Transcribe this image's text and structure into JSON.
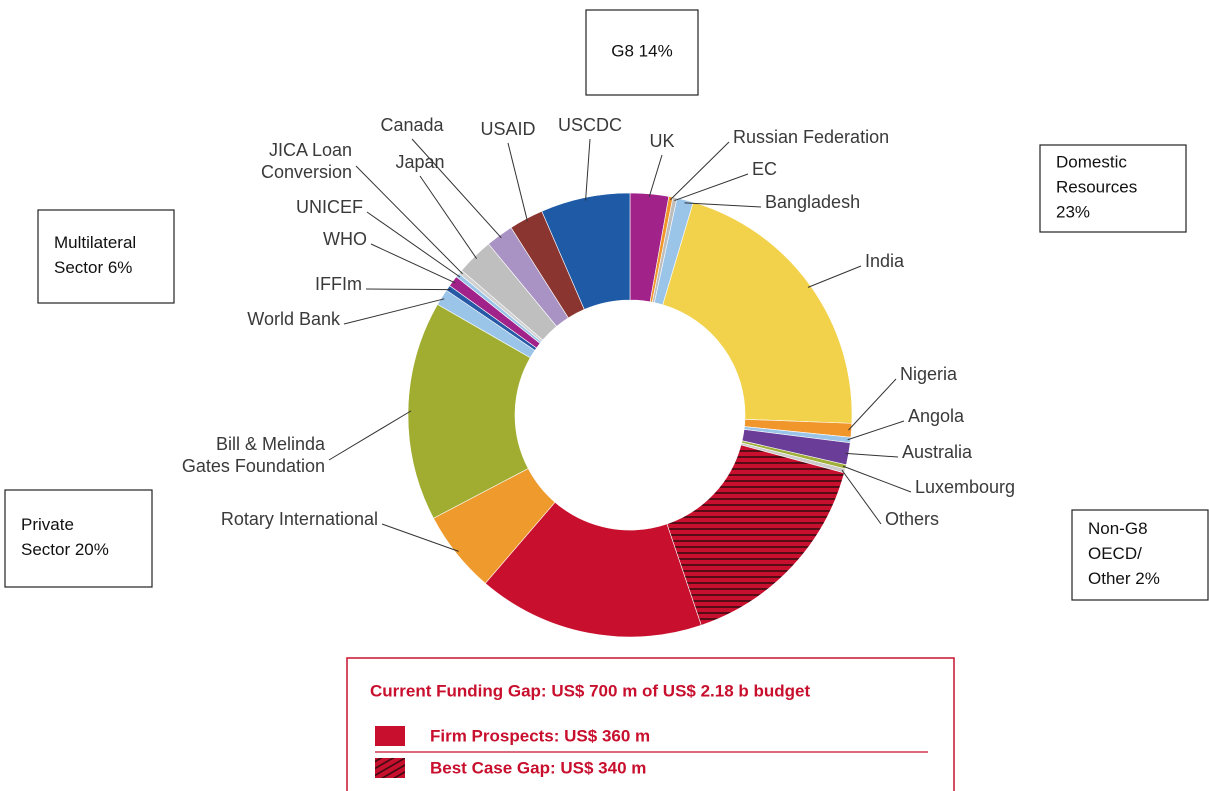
{
  "chart_data": {
    "type": "pie",
    "donut": true,
    "labels": [
      "UK",
      "Russian Federation",
      "EC",
      "Bangladesh",
      "India",
      "Nigeria",
      "Angola",
      "Australia",
      "Luxembourg",
      "Others",
      null,
      null,
      "Rotary International",
      "Bill & Melinda\nGates Foundation",
      "World Bank",
      "IFFIm",
      "WHO",
      "UNICEF",
      "JICA Loan\nConversion",
      "Japan",
      "Canada",
      "USAID",
      "USCDC"
    ],
    "values": [
      2.8,
      0.3,
      0.3,
      1.2,
      21,
      1,
      0.4,
      1.6,
      0.3,
      0.3,
      15.6,
      16.5,
      6,
      16,
      1.2,
      0.4,
      0.8,
      0.3,
      0.3,
      2.7,
      2,
      2.5,
      6.5
    ],
    "colors": [
      "#a1238a",
      "#f0962a",
      "#bdbdbd",
      "#9ac4e8",
      "#f2d14b",
      "#f0962a",
      "#9ac4e8",
      "#6a3d99",
      "#a0b03a",
      "#cccccc",
      "#c8102e",
      "#c8102e",
      "#ee9a2c",
      "#a0ad31",
      "#9ac4e8",
      "#2659a6",
      "#a1238a",
      "#9ac4e8",
      "#d0d0d0",
      "#bfbfbf",
      "#a993c4",
      "#8b3530",
      "#1f5aa6"
    ],
    "hatched": [
      false,
      false,
      false,
      false,
      false,
      false,
      false,
      false,
      false,
      false,
      true,
      false,
      false,
      false,
      false,
      false,
      false,
      false,
      false,
      false,
      false,
      false,
      false
    ],
    "annotations": [
      "G8 14%",
      "Domestic\nResources\n23%",
      "Multilateral\nSector 6%",
      "Private\nSector 20%",
      "Non-G8\nOECD/\nOther 2%"
    ],
    "legend": {
      "title": "Current Funding Gap: US$ 700 m of US$ 2.18 b budget",
      "items": [
        {
          "label": "Firm Prospects: US$ 360 m",
          "hatched": false
        },
        {
          "label": "Best Case Gap: US$ 340 m",
          "hatched": true
        }
      ]
    }
  }
}
